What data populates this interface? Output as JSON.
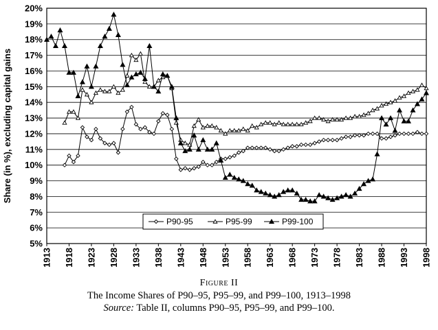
{
  "chart_data": {
    "type": "line",
    "ylabel": "Share (in %), excluding capital gains",
    "ylim": [
      5,
      20
    ],
    "xlim": [
      1913,
      1998
    ],
    "yticks": [
      "5%",
      "6%",
      "7%",
      "8%",
      "9%",
      "10%",
      "11%",
      "12%",
      "13%",
      "14%",
      "15%",
      "16%",
      "17%",
      "18%",
      "19%",
      "20%"
    ],
    "xticks": [
      "1913",
      "1918",
      "1923",
      "1928",
      "1933",
      "1938",
      "1943",
      "1948",
      "1953",
      "1958",
      "1963",
      "1968",
      "1973",
      "1978",
      "1983",
      "1988",
      "1993",
      "1998"
    ],
    "grid": true,
    "legend_position": "bottom-center",
    "series": [
      {
        "name": "P90-95",
        "marker": "diamond-open",
        "x": [
          1917,
          1918,
          1919,
          1920,
          1921,
          1922,
          1923,
          1924,
          1925,
          1926,
          1927,
          1928,
          1929,
          1930,
          1931,
          1932,
          1933,
          1934,
          1935,
          1936,
          1937,
          1938,
          1939,
          1940,
          1941,
          1942,
          1943,
          1944,
          1945,
          1946,
          1947,
          1948,
          1949,
          1950,
          1951,
          1952,
          1953,
          1954,
          1955,
          1956,
          1957,
          1958,
          1959,
          1960,
          1961,
          1962,
          1963,
          1964,
          1965,
          1966,
          1967,
          1968,
          1969,
          1970,
          1971,
          1972,
          1973,
          1974,
          1975,
          1976,
          1977,
          1978,
          1979,
          1980,
          1981,
          1982,
          1983,
          1984,
          1985,
          1986,
          1987,
          1988,
          1989,
          1990,
          1991,
          1992,
          1993,
          1994,
          1995,
          1996,
          1997,
          1998
        ],
        "values": [
          10.0,
          10.6,
          10.2,
          10.6,
          12.4,
          11.8,
          11.6,
          12.3,
          11.7,
          11.4,
          11.3,
          11.4,
          10.8,
          12.3,
          13.4,
          13.7,
          12.6,
          12.3,
          12.4,
          12.1,
          12.0,
          12.8,
          13.3,
          13.2,
          12.3,
          10.4,
          9.7,
          9.8,
          9.7,
          9.8,
          9.9,
          10.2,
          10.0,
          10.0,
          10.2,
          10.4,
          10.4,
          10.5,
          10.6,
          10.8,
          10.9,
          11.1,
          11.1,
          11.1,
          11.1,
          11.1,
          11.0,
          10.9,
          10.9,
          11.0,
          11.1,
          11.2,
          11.2,
          11.3,
          11.3,
          11.3,
          11.4,
          11.5,
          11.6,
          11.6,
          11.6,
          11.6,
          11.7,
          11.8,
          11.8,
          11.9,
          11.9,
          11.9,
          12.0,
          12.0,
          12.0,
          11.7,
          11.7,
          11.8,
          11.9,
          12.0,
          12.0,
          12.0,
          12.0,
          12.1,
          12.0,
          12.0
        ]
      },
      {
        "name": "P95-99",
        "marker": "triangle-open",
        "x": [
          1917,
          1918,
          1919,
          1920,
          1921,
          1922,
          1923,
          1924,
          1925,
          1926,
          1927,
          1928,
          1929,
          1930,
          1931,
          1932,
          1933,
          1934,
          1935,
          1936,
          1937,
          1938,
          1939,
          1940,
          1941,
          1942,
          1943,
          1944,
          1945,
          1946,
          1947,
          1948,
          1949,
          1950,
          1951,
          1952,
          1953,
          1954,
          1955,
          1956,
          1957,
          1958,
          1959,
          1960,
          1961,
          1962,
          1963,
          1964,
          1965,
          1966,
          1967,
          1968,
          1969,
          1970,
          1971,
          1972,
          1973,
          1974,
          1975,
          1976,
          1977,
          1978,
          1979,
          1980,
          1981,
          1982,
          1983,
          1984,
          1985,
          1986,
          1987,
          1988,
          1989,
          1990,
          1991,
          1992,
          1993,
          1994,
          1995,
          1996,
          1997,
          1998
        ],
        "values": [
          12.7,
          13.4,
          13.4,
          13.0,
          14.8,
          14.5,
          14.0,
          14.6,
          14.8,
          14.7,
          14.7,
          15.0,
          14.6,
          14.8,
          15.7,
          17.0,
          16.7,
          17.1,
          15.3,
          15.0,
          15.0,
          15.4,
          15.6,
          15.7,
          14.9,
          12.7,
          11.6,
          11.4,
          11.3,
          12.5,
          12.9,
          12.4,
          12.5,
          12.5,
          12.4,
          12.2,
          12.0,
          12.2,
          12.2,
          12.2,
          12.3,
          12.2,
          12.5,
          12.4,
          12.6,
          12.7,
          12.7,
          12.6,
          12.7,
          12.6,
          12.6,
          12.6,
          12.6,
          12.6,
          12.7,
          12.8,
          13.0,
          13.0,
          12.9,
          12.8,
          12.9,
          12.9,
          12.9,
          13.0,
          13.0,
          13.1,
          13.1,
          13.2,
          13.3,
          13.5,
          13.6,
          13.8,
          13.9,
          14.0,
          14.1,
          14.3,
          14.4,
          14.6,
          14.7,
          14.8,
          15.1,
          14.9
        ]
      },
      {
        "name": "P99-100",
        "marker": "triangle-filled",
        "x": [
          1913,
          1914,
          1915,
          1916,
          1917,
          1918,
          1919,
          1920,
          1921,
          1922,
          1923,
          1924,
          1925,
          1926,
          1927,
          1928,
          1929,
          1930,
          1931,
          1932,
          1933,
          1934,
          1935,
          1936,
          1937,
          1938,
          1939,
          1940,
          1941,
          1942,
          1943,
          1944,
          1945,
          1946,
          1947,
          1948,
          1949,
          1950,
          1951,
          1952,
          1953,
          1954,
          1955,
          1956,
          1957,
          1958,
          1959,
          1960,
          1961,
          1962,
          1963,
          1964,
          1965,
          1966,
          1967,
          1968,
          1969,
          1970,
          1971,
          1972,
          1973,
          1974,
          1975,
          1976,
          1977,
          1978,
          1979,
          1980,
          1981,
          1982,
          1983,
          1984,
          1985,
          1986,
          1987,
          1988,
          1989,
          1990,
          1991,
          1992,
          1993,
          1994,
          1995,
          1996,
          1997,
          1998
        ],
        "values": [
          18.0,
          18.2,
          17.6,
          18.6,
          17.6,
          15.9,
          15.9,
          14.4,
          15.3,
          16.3,
          15.0,
          16.3,
          17.6,
          18.2,
          18.7,
          19.6,
          18.3,
          16.4,
          15.1,
          15.6,
          15.8,
          15.9,
          15.5,
          17.6,
          15.0,
          14.7,
          15.8,
          15.7,
          15.0,
          13.0,
          11.4,
          10.9,
          11.0,
          11.9,
          11.0,
          11.6,
          11.0,
          11.0,
          11.4,
          10.3,
          9.2,
          9.4,
          9.2,
          9.1,
          9.0,
          8.8,
          8.7,
          8.4,
          8.3,
          8.2,
          8.1,
          8.0,
          8.1,
          8.3,
          8.4,
          8.4,
          8.2,
          7.8,
          7.8,
          7.7,
          7.7,
          8.1,
          8.0,
          7.9,
          7.8,
          7.9,
          8.0,
          8.1,
          8.0,
          8.2,
          8.5,
          8.8,
          9.0,
          9.1,
          10.7,
          13.0,
          12.6,
          13.0,
          12.2,
          13.5,
          12.8,
          12.8,
          13.5,
          13.9,
          14.2,
          14.6
        ]
      }
    ]
  },
  "caption": {
    "figure_label": "Figure II",
    "title": "The Income Shares of P90–95, P95–99, and P99–100, 1913–1998",
    "source_label": "Source:",
    "source_text": "Table II, columns P90–95, P95–99, and P99–100."
  }
}
